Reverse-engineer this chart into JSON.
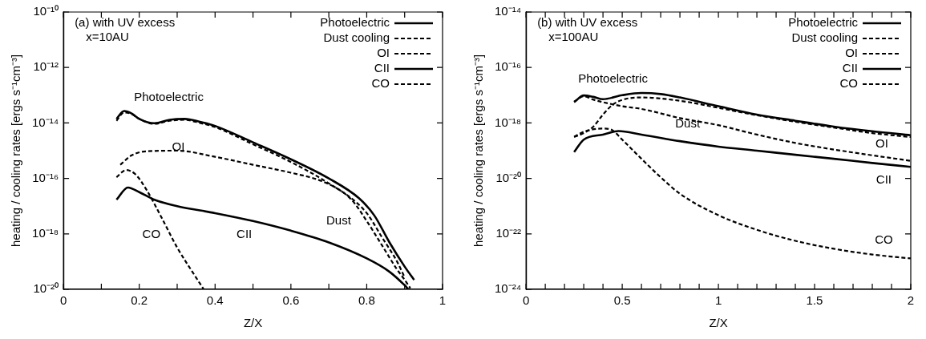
{
  "chart_data": [
    {
      "type": "line",
      "ylabel": "heating / cooling rates [ergs s⁻¹cm⁻³]",
      "xlabel": "Z/X",
      "log": "y",
      "legend": "top right",
      "grid": false,
      "xlim": [
        0,
        1
      ],
      "xticks": [
        0,
        {
          "value": 0.1,
          "label": null
        },
        0.2,
        {
          "value": 0.3,
          "label": null
        },
        0.4,
        {
          "value": 0.5,
          "label": null
        },
        0.6,
        {
          "value": 0.7,
          "label": null
        },
        0.8,
        {
          "value": 0.9,
          "label": null
        },
        1
      ],
      "ylim": [
        1e-20,
        1e-10
      ],
      "yticks": [
        {
          "value": 1e-20,
          "label": "10⁻²⁰"
        },
        {
          "value": 1e-18,
          "label": "10⁻¹⁸"
        },
        {
          "value": 1e-16,
          "label": "10⁻¹⁶"
        },
        {
          "value": 1e-14,
          "label": "10⁻¹⁴"
        },
        {
          "value": 1e-12,
          "label": "10⁻¹²"
        },
        {
          "value": 1e-10,
          "label": "10⁻¹⁰"
        }
      ],
      "annotations": [
        "(a) with UV excess",
        "x=10AU",
        "Photoelectric",
        "OI",
        "CO",
        "CII",
        "Dust"
      ],
      "series": [
        {
          "name": "Photoelectric",
          "color": "#000000",
          "line_style": "solid",
          "x": [
            0.14,
            0.16,
            0.18,
            0.2,
            0.24,
            0.28,
            0.32,
            0.36,
            0.4,
            0.5,
            0.6,
            0.7,
            0.78,
            0.82,
            0.86,
            0.9,
            0.925
          ],
          "values": [
            1.4e-14,
            2.7e-14,
            2.2e-14,
            1.4e-14,
            9.8e-15,
            1.3e-14,
            1.4e-14,
            1.1e-14,
            7.8e-15,
            2e-15,
            4.9e-16,
            1e-16,
            1.9e-17,
            4.6e-18,
            4.9e-19,
            6.6e-20,
            2.2e-20
          ]
        },
        {
          "name": "Dust cooling",
          "color": "#000000",
          "line_style": "dashed",
          "x": [
            0.14,
            0.16,
            0.18,
            0.2,
            0.24,
            0.28,
            0.32,
            0.36,
            0.4,
            0.5,
            0.6,
            0.7,
            0.76,
            0.8,
            0.84,
            0.88,
            0.9,
            0.915
          ],
          "values": [
            1.2e-14,
            2.4e-14,
            2.1e-14,
            1.4e-14,
            9.3e-15,
            1.2e-14,
            1.3e-14,
            1e-14,
            7.1e-15,
            1.7e-15,
            3.9e-16,
            6.6e-17,
            1.7e-17,
            2.9e-18,
            3.9e-19,
            5.2e-20,
            2.2e-20,
            1.1e-20
          ]
        },
        {
          "name": "OI",
          "color": "#000000",
          "line_style": "dashed",
          "x": [
            0.15,
            0.18,
            0.22,
            0.3,
            0.4,
            0.5,
            0.6,
            0.68,
            0.74,
            0.8,
            0.84,
            0.88,
            0.9
          ],
          "values": [
            3.1e-16,
            6.8e-16,
            9.5e-16,
            1e-15,
            6e-16,
            3.1e-16,
            1.6e-16,
            8.1e-17,
            3e-17,
            5.6e-18,
            7.6e-19,
            1e-19,
            2.7e-20
          ]
        },
        {
          "name": "CII",
          "color": "#000000",
          "line_style": "solid",
          "x": [
            0.14,
            0.17,
            0.2,
            0.24,
            0.3,
            0.4,
            0.5,
            0.6,
            0.7,
            0.8,
            0.86,
            0.9,
            0.91
          ],
          "values": [
            1.7e-17,
            4.7e-17,
            3.2e-17,
            1.7e-17,
            1e-17,
            5.6e-18,
            2.9e-18,
            1.3e-18,
            4.9e-19,
            1.3e-19,
            4.3e-20,
            1.4e-20,
            1e-20
          ]
        },
        {
          "name": "CO",
          "color": "#000000",
          "line_style": "dashed",
          "x": [
            0.14,
            0.165,
            0.19,
            0.22,
            0.26,
            0.3,
            0.34,
            0.37
          ],
          "values": [
            1.1e-16,
            2e-16,
            1.4e-16,
            3.7e-17,
            3.6e-18,
            3.2e-19,
            4.3e-20,
            1e-20
          ]
        }
      ]
    },
    {
      "type": "line",
      "ylabel": "heating / cooling rates [ergs s⁻¹cm⁻³]",
      "xlabel": "Z/X",
      "log": "y",
      "legend": "top right",
      "grid": false,
      "xlim": [
        0,
        2
      ],
      "xticks": [
        0,
        {
          "value": 0.1,
          "label": null
        },
        {
          "value": 0.2,
          "label": null
        },
        {
          "value": 0.3,
          "label": null
        },
        {
          "value": 0.4,
          "label": null
        },
        0.5,
        {
          "value": 0.6,
          "label": null
        },
        {
          "value": 0.7,
          "label": null
        },
        {
          "value": 0.8,
          "label": null
        },
        {
          "value": 0.9,
          "label": null
        },
        1,
        {
          "value": 1.1,
          "label": null
        },
        {
          "value": 1.2,
          "label": null
        },
        {
          "value": 1.3,
          "label": null
        },
        {
          "value": 1.4,
          "label": null
        },
        1.5,
        {
          "value": 1.6,
          "label": null
        },
        {
          "value": 1.7,
          "label": null
        },
        {
          "value": 1.8,
          "label": null
        },
        {
          "value": 1.9,
          "label": null
        },
        2
      ],
      "ylim": [
        1e-24,
        1e-14
      ],
      "yticks": [
        {
          "value": 1e-24,
          "label": "10⁻²⁴"
        },
        {
          "value": 1e-22,
          "label": "10⁻²²"
        },
        {
          "value": 1e-20,
          "label": "10⁻²⁰"
        },
        {
          "value": 1e-18,
          "label": "10⁻¹⁸"
        },
        {
          "value": 1e-16,
          "label": "10⁻¹⁶"
        },
        {
          "value": 1e-14,
          "label": "10⁻¹⁴"
        }
      ],
      "annotations": [
        "(b) with UV excess",
        "x=100AU",
        "Photoelectric",
        "Dust",
        "OI",
        "CII",
        "CO"
      ],
      "series": [
        {
          "name": "Photoelectric",
          "color": "#000000",
          "line_style": "solid",
          "x": [
            0.25,
            0.3,
            0.35,
            0.4,
            0.5,
            0.6,
            0.7,
            0.8,
            1.0,
            1.2,
            1.4,
            1.6,
            1.8,
            2.0
          ],
          "values": [
            5.6e-18,
            9.8e-18,
            8.7e-18,
            7.2e-18,
            1e-17,
            1.2e-17,
            1.1e-17,
            8.3e-18,
            4e-18,
            2e-18,
            1.2e-18,
            7.4e-19,
            5e-19,
            3.6e-19
          ]
        },
        {
          "name": "Dust cooling",
          "color": "#000000",
          "line_style": "dashed",
          "x": [
            0.25,
            0.3,
            0.35,
            0.4,
            0.5,
            0.6,
            0.8,
            1.0,
            1.2,
            1.4,
            1.6,
            1.8,
            2.0
          ],
          "values": [
            5.9e-18,
            9.1e-18,
            6.9e-18,
            5.6e-18,
            4e-18,
            3.2e-18,
            1.5e-18,
            8.3e-19,
            3.8e-19,
            1.9e-19,
            1.1e-19,
            6.8e-20,
            4.3e-20
          ]
        },
        {
          "name": "OI",
          "color": "#000000",
          "line_style": "dashed",
          "x": [
            0.25,
            0.3,
            0.35,
            0.4,
            0.45,
            0.5,
            0.6,
            0.8,
            1.0,
            1.2,
            1.4,
            1.6,
            1.8,
            2.0
          ],
          "values": [
            3.1e-19,
            4.3e-19,
            7.4e-19,
            2e-18,
            4.5e-18,
            6.8e-18,
            8.3e-18,
            6.3e-18,
            3.5e-18,
            1.9e-18,
            1.1e-18,
            6.8e-19,
            4.3e-19,
            3.1e-19
          ]
        },
        {
          "name": "CII",
          "color": "#000000",
          "line_style": "solid",
          "x": [
            0.25,
            0.3,
            0.4,
            0.48,
            0.6,
            0.8,
            1.0,
            1.2,
            1.4,
            1.6,
            1.8,
            2.0
          ],
          "values": [
            8.9e-20,
            2.5e-19,
            3.8e-19,
            5.1e-19,
            3.8e-19,
            2.2e-19,
            1.4e-19,
            1e-19,
            7.1e-20,
            5.1e-20,
            3.6e-20,
            2.6e-20
          ]
        },
        {
          "name": "CO",
          "color": "#000000",
          "line_style": "dashed",
          "x": [
            0.25,
            0.3,
            0.4,
            0.45,
            0.5,
            0.6,
            0.7,
            0.8,
            1.0,
            1.2,
            1.4,
            1.6,
            1.8,
            2.0
          ],
          "values": [
            3.2e-19,
            4.8e-19,
            6.3e-19,
            5.4e-19,
            2.5e-19,
            5.1e-20,
            1.1e-20,
            2.8e-21,
            4.7e-22,
            1.4e-22,
            5.6e-23,
            2.9e-23,
            1.8e-23,
            1.3e-23
          ]
        }
      ]
    }
  ]
}
